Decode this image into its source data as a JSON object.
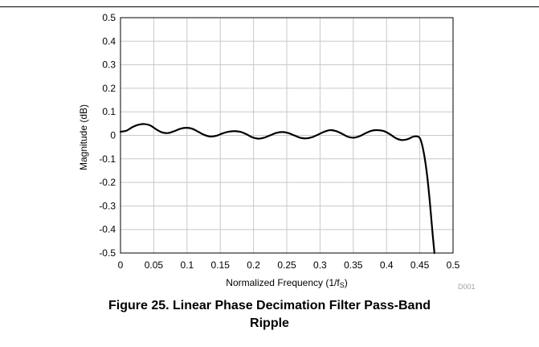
{
  "figure": {
    "caption_line1": "Figure 25. Linear Phase Decimation Filter Pass-Band",
    "caption_line2": "Ripple",
    "source_tag": "D001"
  },
  "colors": {
    "line": "#000000",
    "grid": "#c8c8c8",
    "frame": "#000000",
    "background": "#ffffff"
  },
  "chart_data": {
    "type": "line",
    "title": "",
    "xlabel": "Normalized Frequency (1/f",
    "xlabel_subscript": "S",
    "xlabel_suffix": ")",
    "ylabel": "Magnitude (dB)",
    "xlim": [
      0,
      0.5
    ],
    "ylim": [
      -0.5,
      0.5
    ],
    "xticks": [
      0,
      0.05,
      0.1,
      0.15,
      0.2,
      0.25,
      0.3,
      0.35,
      0.4,
      0.45,
      0.5
    ],
    "xtick_labels": [
      "0",
      "0.05",
      "0.1",
      "0.15",
      "0.2",
      "0.25",
      "0.3",
      "0.35",
      "0.4",
      "0.45",
      "0.5"
    ],
    "yticks": [
      0.5,
      0.4,
      0.3,
      0.2,
      0.1,
      0,
      -0.1,
      -0.2,
      -0.3,
      -0.4,
      -0.5
    ],
    "ytick_labels": [
      "0.5",
      "0.4",
      "0.3",
      "0.2",
      "0.1",
      "0",
      "-0.1",
      "-0.2",
      "-0.3",
      "-0.4",
      "-0.5"
    ],
    "grid": true,
    "series": [
      {
        "x": [
          0,
          0.009,
          0.018,
          0.027,
          0.036,
          0.045,
          0.054,
          0.063,
          0.072,
          0.081,
          0.09,
          0.099,
          0.108,
          0.117,
          0.126,
          0.135,
          0.144,
          0.153,
          0.162,
          0.171,
          0.18,
          0.189,
          0.198,
          0.207,
          0.216,
          0.225,
          0.234,
          0.243,
          0.252,
          0.261,
          0.27,
          0.279,
          0.288,
          0.297,
          0.306,
          0.315,
          0.324,
          0.333,
          0.342,
          0.351,
          0.36,
          0.369,
          0.378,
          0.387,
          0.396,
          0.405,
          0.414,
          0.423,
          0.432,
          0.441,
          0.449,
          0.453,
          0.457,
          0.461,
          0.465,
          0.469,
          0.472
        ],
        "y": [
          0.015,
          0.02,
          0.035,
          0.045,
          0.048,
          0.042,
          0.025,
          0.012,
          0.01,
          0.018,
          0.028,
          0.032,
          0.028,
          0.015,
          0.002,
          -0.005,
          -0.002,
          0.008,
          0.015,
          0.018,
          0.015,
          0.005,
          -0.008,
          -0.014,
          -0.01,
          0.0,
          0.01,
          0.014,
          0.01,
          0.0,
          -0.01,
          -0.013,
          -0.008,
          0.003,
          0.015,
          0.022,
          0.018,
          0.007,
          -0.006,
          -0.01,
          -0.003,
          0.01,
          0.02,
          0.022,
          0.018,
          0.005,
          -0.012,
          -0.02,
          -0.016,
          -0.005,
          -0.008,
          -0.035,
          -0.09,
          -0.17,
          -0.28,
          -0.41,
          -0.5
        ]
      }
    ]
  }
}
